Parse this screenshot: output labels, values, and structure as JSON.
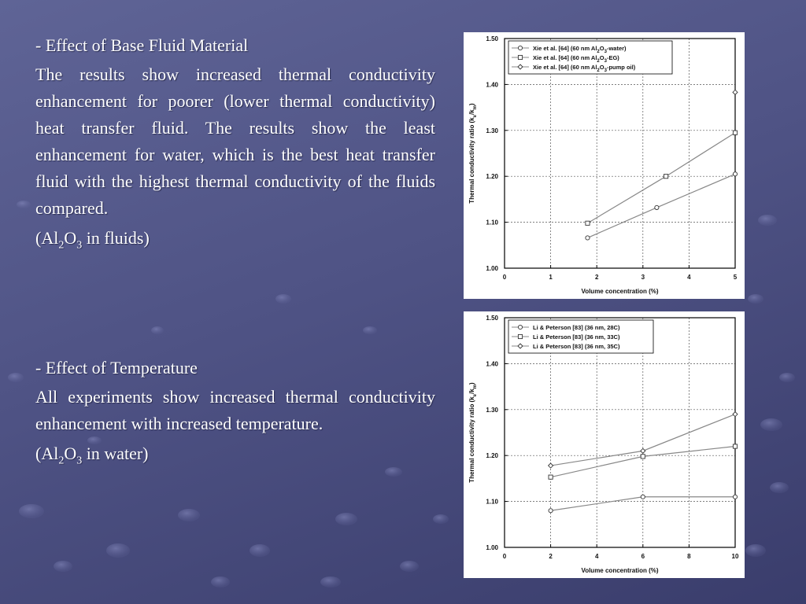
{
  "colors": {
    "background": "#535788",
    "text": "#ffffff",
    "panel": "#ffffff",
    "line": "#888888"
  },
  "section1": {
    "heading": "- Effect of Base Fluid Material",
    "paragraph": "The results show increased thermal conductivity enhancement for poorer (lower thermal conductivity) heat transfer fluid. The results show the least enhancement for water, which is the best heat transfer fluid with the highest thermal conductivity of the fluids compared.",
    "note_pre": "(Al",
    "note_sub1": "2",
    "note_mid": "O",
    "note_sub2": "3",
    "note_post": " in fluids)"
  },
  "section2": {
    "heading": "- Effect of Temperature",
    "paragraph": "All experiments show increased thermal conductivity enhancement with increased temperature.",
    "note_pre": "(Al",
    "note_sub1": "2",
    "note_mid": "O",
    "note_sub2": "3",
    "note_post": " in water)"
  },
  "chart_data": [
    {
      "type": "line",
      "xlabel": "Volume concentration (%)",
      "ylabel": "Thermal conductivity ratio (k",
      "ylabel_sub1": "e",
      "ylabel_mid": "/k",
      "ylabel_sub2": "m",
      "ylabel_end": ")",
      "xlim": [
        0,
        5
      ],
      "ylim": [
        1.0,
        1.5
      ],
      "xticks": [
        "0",
        "1",
        "2",
        "3",
        "4",
        "5"
      ],
      "yticks": [
        "1.00",
        "1.10",
        "1.20",
        "1.30",
        "1.40",
        "1.50"
      ],
      "grid": true,
      "legend_position": "top-left",
      "series": [
        {
          "name_pre": "Xie et al. [64] (60 nm Al",
          "name_sub1": "2",
          "name_mid": "O",
          "name_sub2": "3",
          "name_post": "-water)",
          "marker": "circle",
          "x": [
            1.8,
            3.3,
            5.0
          ],
          "y": [
            1.066,
            1.132,
            1.205
          ]
        },
        {
          "name_pre": "Xie et al. [64] (60 nm Al",
          "name_sub1": "2",
          "name_mid": "O",
          "name_sub2": "3",
          "name_post": "-EG)",
          "marker": "square",
          "x": [
            1.8,
            3.5,
            5.0
          ],
          "y": [
            1.098,
            1.2,
            1.295
          ]
        },
        {
          "name_pre": "Xie et al. [64] (60 nm Al",
          "name_sub1": "2",
          "name_mid": "O",
          "name_sub2": "3",
          "name_post": "-pump oil)",
          "marker": "diamond",
          "x": [
            5.0
          ],
          "y": [
            1.383
          ]
        }
      ]
    },
    {
      "type": "line",
      "xlabel": "Volume concentration (%)",
      "ylabel": "Thermal conductivity ratio (k",
      "ylabel_sub1": "e",
      "ylabel_mid": "/k",
      "ylabel_sub2": "m",
      "ylabel_end": ")",
      "xlim": [
        0,
        10
      ],
      "ylim": [
        1.0,
        1.5
      ],
      "xticks": [
        "0",
        "2",
        "4",
        "6",
        "8",
        "10"
      ],
      "yticks": [
        "1.00",
        "1.10",
        "1.20",
        "1.30",
        "1.40",
        "1.50"
      ],
      "grid": true,
      "legend_position": "top-left",
      "series": [
        {
          "name_pre": "Li & Peterson [83] (36 nm, 28C)",
          "name_sub1": "",
          "name_mid": "",
          "name_sub2": "",
          "name_post": "",
          "marker": "circle",
          "x": [
            2,
            6,
            10
          ],
          "y": [
            1.08,
            1.11,
            1.11
          ]
        },
        {
          "name_pre": "Li & Peterson [83] (36 nm, 33C)",
          "name_sub1": "",
          "name_mid": "",
          "name_sub2": "",
          "name_post": "",
          "marker": "square",
          "x": [
            2,
            6,
            10
          ],
          "y": [
            1.153,
            1.198,
            1.22
          ]
        },
        {
          "name_pre": "Li & Peterson [83] (36 nm, 35C)",
          "name_sub1": "",
          "name_mid": "",
          "name_sub2": "",
          "name_post": "",
          "marker": "diamond",
          "x": [
            2,
            6,
            10
          ],
          "y": [
            1.178,
            1.21,
            1.29
          ]
        }
      ]
    }
  ]
}
